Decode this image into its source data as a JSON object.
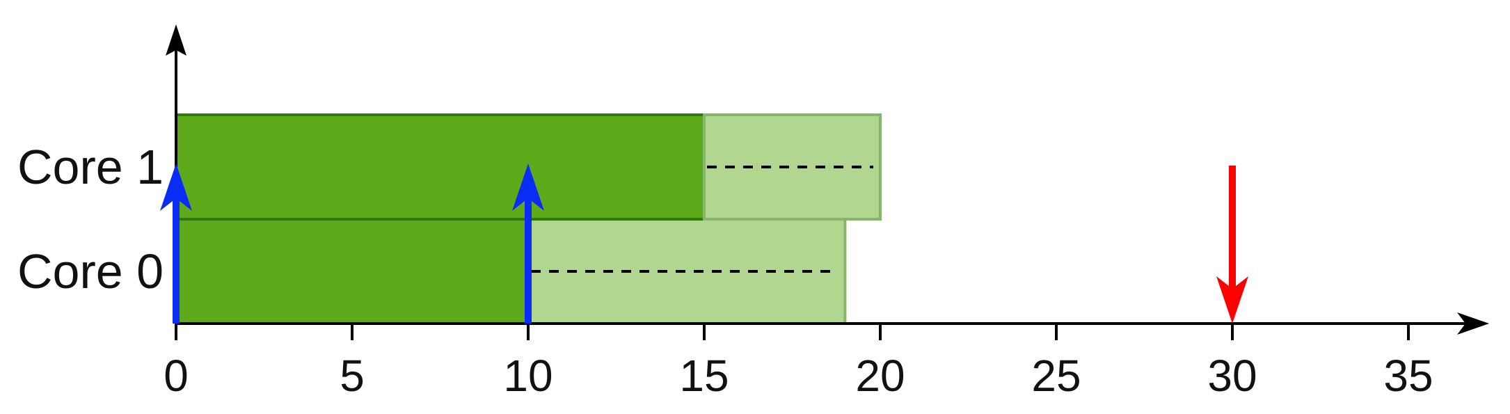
{
  "chart_data": {
    "type": "gantt",
    "xlim": [
      0,
      37
    ],
    "x_ticks": [
      0,
      5,
      10,
      15,
      20,
      25,
      30,
      35
    ],
    "tick_labels": [
      "0",
      "5",
      "10",
      "15",
      "20",
      "25",
      "30",
      "35"
    ],
    "rows": [
      {
        "label": "Core 0",
        "segments": [
          {
            "start": 0,
            "end": 10,
            "kind": "solid"
          },
          {
            "start": 10,
            "end": 19,
            "kind": "light-dashed"
          }
        ]
      },
      {
        "label": "Core 1",
        "segments": [
          {
            "start": 0,
            "end": 15,
            "kind": "solid"
          },
          {
            "start": 15,
            "end": 20,
            "kind": "light-dashed"
          }
        ]
      }
    ],
    "release_arrows": [
      {
        "x": 0,
        "row": "Core 1"
      },
      {
        "x": 10,
        "row": "Core 1"
      }
    ],
    "deadline_arrows": [
      {
        "x": 30
      }
    ],
    "colors": {
      "solid_fill": "#5faa1a",
      "solid_stroke": "#2f7a0a",
      "light_fill": "#b1d68f",
      "light_stroke": "#86b56c",
      "release_arrow": "#0a2cf5",
      "deadline_arrow": "#ff0000",
      "axis": "#000000"
    }
  }
}
